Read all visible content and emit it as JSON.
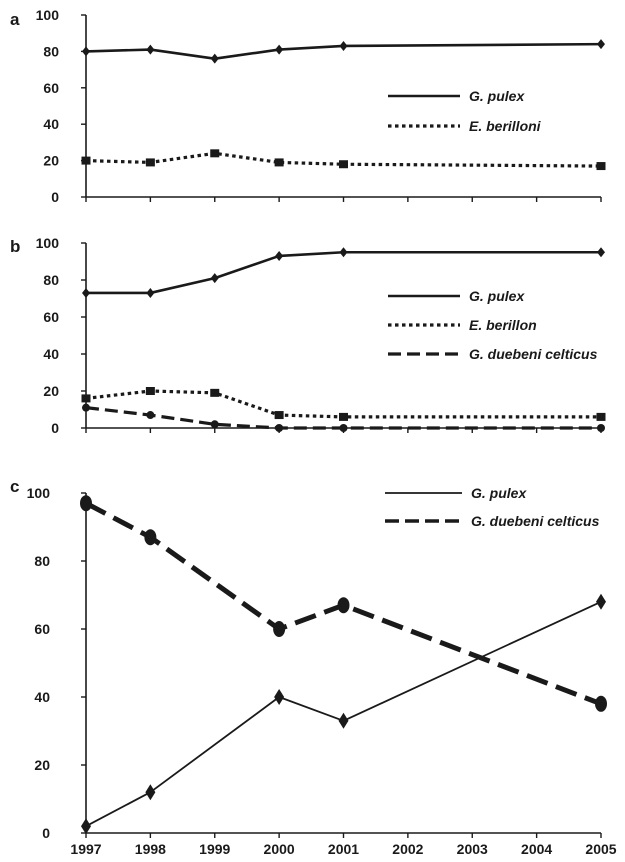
{
  "chart_data": [
    {
      "panel": "a",
      "type": "line",
      "x": [
        1997,
        1998,
        1999,
        2000,
        2001,
        2005
      ],
      "ylim": [
        0,
        100
      ],
      "yticks": [
        0,
        20,
        40,
        60,
        80,
        100
      ],
      "legend_position": "center-right",
      "series": [
        {
          "name": "G. pulex",
          "style": "solid",
          "marker": "diamond",
          "values": [
            80,
            81,
            76,
            81,
            83,
            84
          ]
        },
        {
          "name": "E. berilloni",
          "style": "dotted",
          "marker": "square",
          "values": [
            20,
            19,
            24,
            19,
            18,
            17
          ]
        }
      ]
    },
    {
      "panel": "b",
      "type": "line",
      "x": [
        1997,
        1998,
        1999,
        2000,
        2001,
        2005
      ],
      "ylim": [
        0,
        100
      ],
      "yticks": [
        0,
        20,
        40,
        60,
        80,
        100
      ],
      "legend_position": "center-right",
      "series": [
        {
          "name": "G. pulex",
          "style": "solid",
          "marker": "diamond",
          "values": [
            73,
            73,
            81,
            93,
            95,
            95
          ]
        },
        {
          "name": "E. berillon",
          "style": "dotted",
          "marker": "square",
          "values": [
            16,
            20,
            19,
            7,
            6,
            6
          ]
        },
        {
          "name": "G. duebeni celticus",
          "style": "dashed",
          "marker": "circle",
          "values": [
            11,
            7,
            2,
            0,
            0,
            0
          ]
        }
      ]
    },
    {
      "panel": "c",
      "type": "line",
      "x": [
        1997,
        1998,
        2000,
        2001,
        2005
      ],
      "xticks": [
        "1997",
        "1998",
        "1999",
        "2000",
        "2001",
        "2002",
        "2003",
        "2004",
        "2005"
      ],
      "ylim": [
        0,
        100
      ],
      "yticks": [
        0,
        20,
        40,
        60,
        80,
        100
      ],
      "legend_position": "top-right",
      "series": [
        {
          "name": "G. pulex",
          "style": "solid-thin",
          "marker": "diamond",
          "values": [
            2,
            12,
            40,
            33,
            68
          ]
        },
        {
          "name": "G. duebeni celticus",
          "style": "dashed-thick",
          "marker": "circle",
          "values": [
            97,
            87,
            60,
            67,
            38
          ]
        }
      ]
    }
  ],
  "colors": {
    "line": "#1a1a1a",
    "background": "#ffffff"
  }
}
